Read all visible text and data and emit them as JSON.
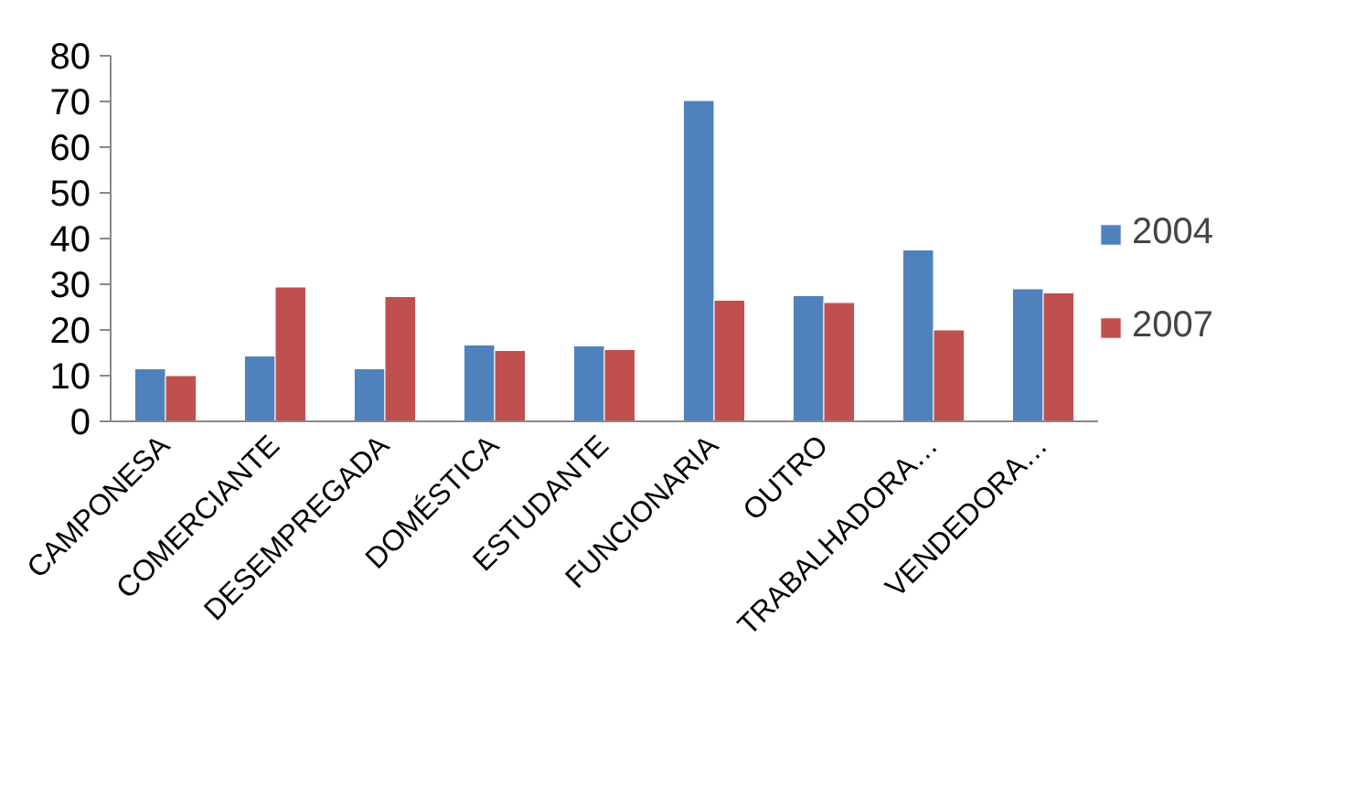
{
  "chart_data": {
    "type": "bar",
    "categories": [
      "CAMPONESA",
      "COMERCIANTE",
      "DESEMPREGADA",
      "DOMÉSTICA",
      "ESTUDANTE",
      "FUNCIONARIA",
      "OUTRO",
      "TRABALHADORA…",
      "VENDEDORA…"
    ],
    "series": [
      {
        "name": "2004",
        "color": "#4f81bd",
        "values": [
          11.5,
          14.3,
          11.5,
          16.7,
          16.5,
          70.2,
          27.5,
          37.5,
          29.0
        ]
      },
      {
        "name": "2007",
        "color": "#c0504d",
        "values": [
          10,
          29.4,
          27.3,
          15.5,
          15.7,
          26.5,
          26.0,
          20.0,
          28.1
        ]
      }
    ],
    "ylim": [
      0,
      80
    ],
    "yticks": [
      0,
      10,
      20,
      30,
      40,
      50,
      60,
      70,
      80
    ],
    "grid": false,
    "legend": "right"
  }
}
